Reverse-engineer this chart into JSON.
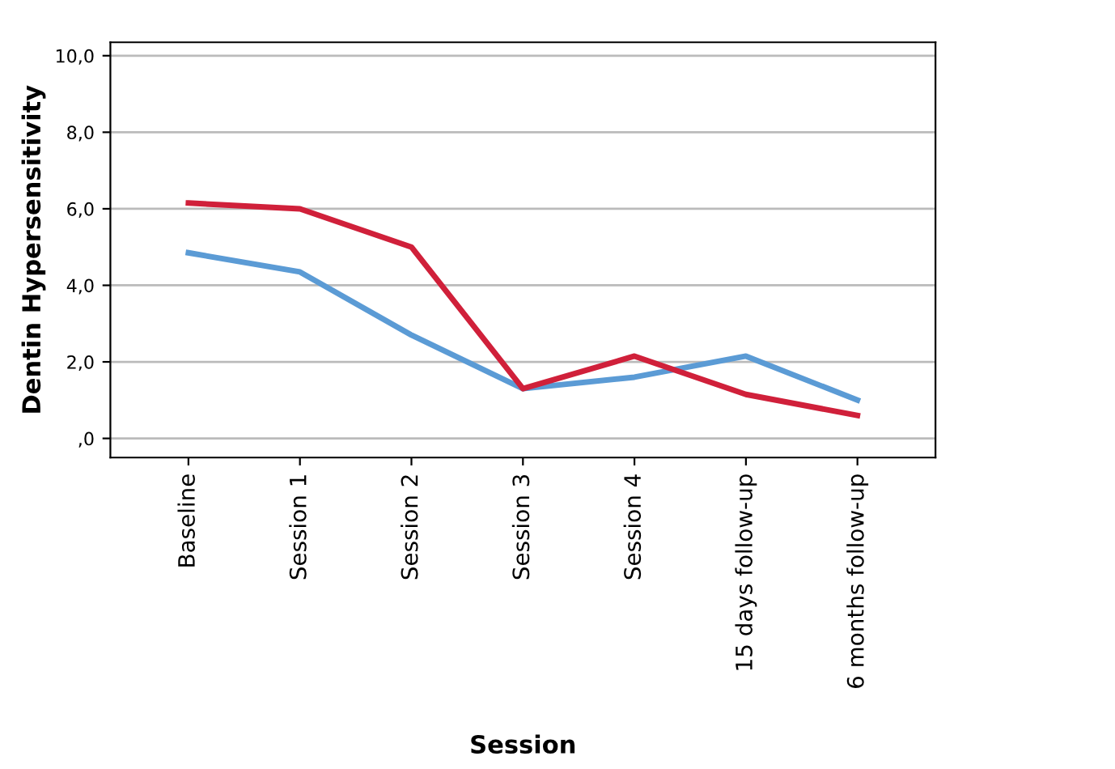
{
  "chart_data": {
    "type": "line",
    "xlabel": "Session",
    "ylabel": "Dentin Hypersensitivity",
    "categories": [
      "Baseline",
      "Session 1",
      "Session 2",
      "Session 3",
      "Session 4",
      "15 days follow-up",
      "6 months follow-up"
    ],
    "series": [
      {
        "color": "#5b9bd5",
        "values": [
          4.85,
          4.35,
          2.7,
          1.3,
          1.6,
          2.15,
          1.0
        ]
      },
      {
        "color": "#d0203a",
        "values": [
          6.15,
          6.0,
          5.0,
          1.3,
          2.15,
          1.15,
          0.6
        ]
      }
    ],
    "ylim": [
      -0.5,
      10.35
    ],
    "yticks": [
      {
        "value": 0,
        "label": ",0"
      },
      {
        "value": 2,
        "label": "2,0"
      },
      {
        "value": 4,
        "label": "4,0"
      },
      {
        "value": 6,
        "label": "6,0"
      },
      {
        "value": 8,
        "label": "8,0"
      },
      {
        "value": 10,
        "label": "10,0"
      }
    ],
    "grid": "y",
    "marker": "none",
    "line_style": "solid"
  }
}
